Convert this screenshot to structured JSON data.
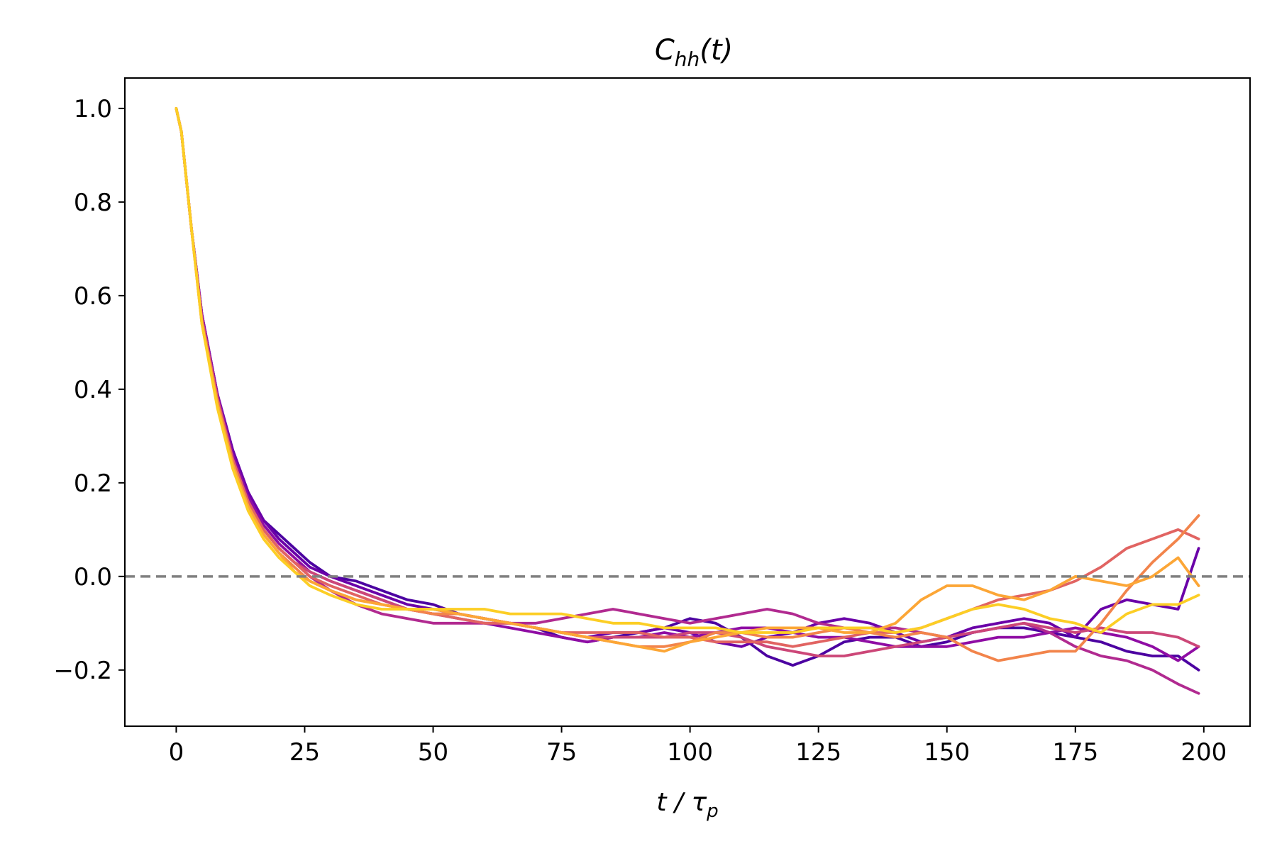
{
  "chart_data": {
    "type": "line",
    "title": {
      "base": "C",
      "sub": "hh",
      "rest": "(t)"
    },
    "xlabel": {
      "base": "t / τ",
      "sub": "p"
    },
    "ylabel": "",
    "xlim": [
      -10,
      209
    ],
    "ylim": [
      -0.32,
      1.065
    ],
    "xticks": [
      0,
      25,
      50,
      75,
      100,
      125,
      150,
      175,
      200
    ],
    "yticks": [
      {
        "v": 1.0,
        "label": "1.0"
      },
      {
        "v": 0.8,
        "label": "0.8"
      },
      {
        "v": 0.6,
        "label": "0.6"
      },
      {
        "v": 0.4,
        "label": "0.4"
      },
      {
        "v": 0.2,
        "label": "0.2"
      },
      {
        "v": 0.0,
        "label": "0.0"
      },
      {
        "v": -0.2,
        "label": "−0.2"
      }
    ],
    "grid": false,
    "reference_line": {
      "y": 0.0,
      "style": "dashed",
      "color": "#808080"
    },
    "colormap": "plasma",
    "x": [
      0,
      1,
      3,
      5,
      8,
      11,
      14,
      17,
      20,
      23,
      26,
      30,
      35,
      40,
      45,
      50,
      55,
      60,
      65,
      70,
      75,
      80,
      85,
      90,
      95,
      100,
      105,
      110,
      115,
      120,
      125,
      130,
      135,
      140,
      145,
      150,
      155,
      160,
      165,
      170,
      175,
      180,
      185,
      190,
      195,
      199
    ],
    "series": [
      {
        "color": "#4c02a1",
        "values": [
          1.0,
          0.95,
          0.74,
          0.56,
          0.39,
          0.27,
          0.18,
          0.12,
          0.09,
          0.06,
          0.03,
          0.0,
          -0.01,
          -0.03,
          -0.05,
          -0.06,
          -0.08,
          -0.09,
          -0.1,
          -0.11,
          -0.13,
          -0.14,
          -0.13,
          -0.12,
          -0.11,
          -0.09,
          -0.1,
          -0.13,
          -0.17,
          -0.19,
          -0.17,
          -0.14,
          -0.13,
          -0.13,
          -0.15,
          -0.14,
          -0.12,
          -0.11,
          -0.11,
          -0.12,
          -0.13,
          -0.14,
          -0.16,
          -0.17,
          -0.17,
          -0.2
        ]
      },
      {
        "color": "#6a00a8",
        "values": [
          1.0,
          0.95,
          0.74,
          0.56,
          0.39,
          0.27,
          0.18,
          0.12,
          0.08,
          0.05,
          0.02,
          0.0,
          -0.02,
          -0.04,
          -0.06,
          -0.07,
          -0.08,
          -0.09,
          -0.1,
          -0.11,
          -0.12,
          -0.13,
          -0.12,
          -0.12,
          -0.11,
          -0.12,
          -0.14,
          -0.15,
          -0.13,
          -0.12,
          -0.1,
          -0.09,
          -0.1,
          -0.12,
          -0.14,
          -0.13,
          -0.11,
          -0.1,
          -0.09,
          -0.1,
          -0.13,
          -0.07,
          -0.05,
          -0.06,
          -0.07,
          0.06
        ]
      },
      {
        "color": "#8f0da4",
        "values": [
          1.0,
          0.95,
          0.74,
          0.56,
          0.39,
          0.26,
          0.17,
          0.11,
          0.07,
          0.04,
          0.01,
          -0.01,
          -0.03,
          -0.05,
          -0.07,
          -0.08,
          -0.09,
          -0.1,
          -0.11,
          -0.12,
          -0.13,
          -0.14,
          -0.13,
          -0.13,
          -0.12,
          -0.13,
          -0.12,
          -0.11,
          -0.11,
          -0.12,
          -0.13,
          -0.13,
          -0.14,
          -0.15,
          -0.15,
          -0.15,
          -0.14,
          -0.13,
          -0.13,
          -0.12,
          -0.11,
          -0.12,
          -0.13,
          -0.15,
          -0.18,
          -0.15
        ]
      },
      {
        "color": "#b12a90",
        "values": [
          1.0,
          0.95,
          0.74,
          0.55,
          0.38,
          0.25,
          0.16,
          0.1,
          0.06,
          0.03,
          0.0,
          -0.03,
          -0.06,
          -0.08,
          -0.09,
          -0.1,
          -0.1,
          -0.1,
          -0.1,
          -0.1,
          -0.09,
          -0.08,
          -0.07,
          -0.08,
          -0.09,
          -0.1,
          -0.09,
          -0.08,
          -0.07,
          -0.08,
          -0.1,
          -0.11,
          -0.11,
          -0.11,
          -0.12,
          -0.13,
          -0.12,
          -0.11,
          -0.1,
          -0.12,
          -0.15,
          -0.17,
          -0.18,
          -0.2,
          -0.23,
          -0.25
        ]
      },
      {
        "color": "#cc4778",
        "values": [
          1.0,
          0.95,
          0.74,
          0.55,
          0.38,
          0.25,
          0.16,
          0.1,
          0.06,
          0.03,
          0.01,
          -0.01,
          -0.03,
          -0.05,
          -0.07,
          -0.08,
          -0.08,
          -0.09,
          -0.1,
          -0.11,
          -0.12,
          -0.13,
          -0.13,
          -0.13,
          -0.13,
          -0.12,
          -0.12,
          -0.13,
          -0.15,
          -0.16,
          -0.17,
          -0.17,
          -0.16,
          -0.15,
          -0.14,
          -0.13,
          -0.12,
          -0.11,
          -0.1,
          -0.11,
          -0.12,
          -0.11,
          -0.12,
          -0.12,
          -0.13,
          -0.15
        ]
      },
      {
        "color": "#e16462",
        "values": [
          1.0,
          0.95,
          0.74,
          0.55,
          0.38,
          0.25,
          0.16,
          0.1,
          0.06,
          0.03,
          0.0,
          -0.02,
          -0.04,
          -0.06,
          -0.07,
          -0.08,
          -0.09,
          -0.1,
          -0.1,
          -0.11,
          -0.12,
          -0.12,
          -0.12,
          -0.12,
          -0.13,
          -0.13,
          -0.14,
          -0.14,
          -0.14,
          -0.15,
          -0.14,
          -0.13,
          -0.12,
          -0.12,
          -0.11,
          -0.09,
          -0.07,
          -0.05,
          -0.04,
          -0.03,
          -0.01,
          0.02,
          0.06,
          0.08,
          0.1,
          0.08
        ]
      },
      {
        "color": "#f2844b",
        "values": [
          1.0,
          0.95,
          0.74,
          0.54,
          0.37,
          0.24,
          0.15,
          0.09,
          0.05,
          0.02,
          -0.01,
          -0.03,
          -0.05,
          -0.06,
          -0.07,
          -0.08,
          -0.08,
          -0.09,
          -0.1,
          -0.11,
          -0.12,
          -0.13,
          -0.14,
          -0.15,
          -0.15,
          -0.14,
          -0.12,
          -0.12,
          -0.13,
          -0.13,
          -0.12,
          -0.11,
          -0.12,
          -0.13,
          -0.12,
          -0.13,
          -0.16,
          -0.18,
          -0.17,
          -0.16,
          -0.16,
          -0.1,
          -0.03,
          0.03,
          0.08,
          0.13
        ]
      },
      {
        "color": "#fca636",
        "values": [
          1.0,
          0.95,
          0.74,
          0.54,
          0.37,
          0.24,
          0.15,
          0.09,
          0.05,
          0.01,
          -0.01,
          -0.03,
          -0.05,
          -0.06,
          -0.07,
          -0.07,
          -0.08,
          -0.09,
          -0.1,
          -0.11,
          -0.12,
          -0.13,
          -0.14,
          -0.15,
          -0.16,
          -0.14,
          -0.13,
          -0.12,
          -0.11,
          -0.11,
          -0.11,
          -0.12,
          -0.12,
          -0.1,
          -0.05,
          -0.02,
          -0.02,
          -0.04,
          -0.05,
          -0.03,
          0.0,
          -0.01,
          -0.02,
          0.0,
          0.04,
          -0.02
        ]
      },
      {
        "color": "#fcce25",
        "values": [
          1.0,
          0.95,
          0.74,
          0.54,
          0.36,
          0.23,
          0.14,
          0.08,
          0.04,
          0.01,
          -0.02,
          -0.04,
          -0.06,
          -0.07,
          -0.07,
          -0.07,
          -0.07,
          -0.07,
          -0.08,
          -0.08,
          -0.08,
          -0.09,
          -0.1,
          -0.1,
          -0.11,
          -0.11,
          -0.11,
          -0.12,
          -0.12,
          -0.12,
          -0.11,
          -0.11,
          -0.11,
          -0.12,
          -0.11,
          -0.09,
          -0.07,
          -0.06,
          -0.07,
          -0.09,
          -0.1,
          -0.12,
          -0.08,
          -0.06,
          -0.06,
          -0.04
        ]
      }
    ]
  }
}
